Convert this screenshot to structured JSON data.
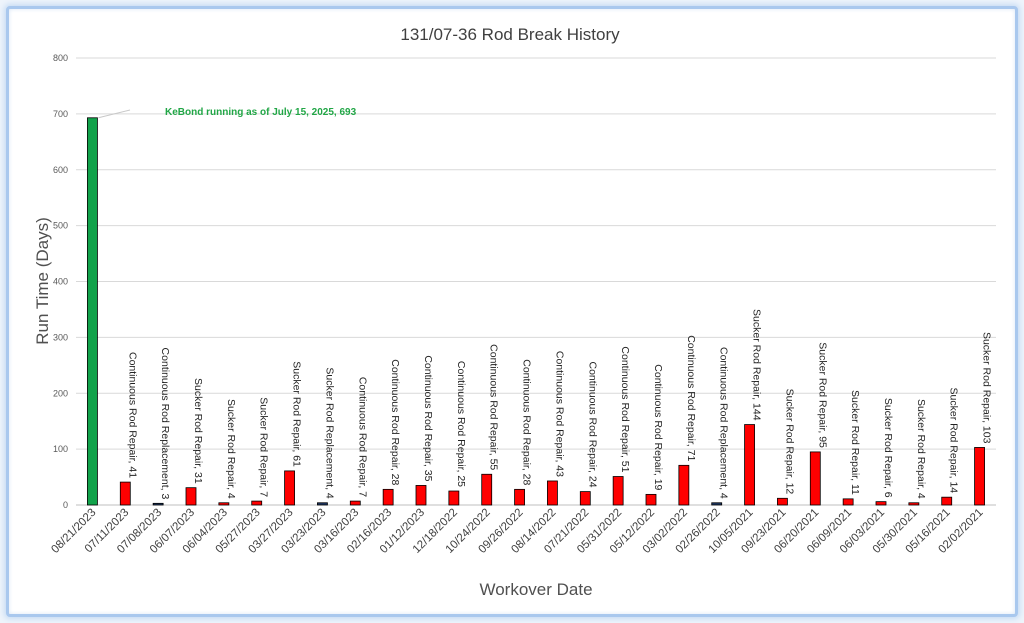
{
  "chart_data": {
    "type": "bar",
    "title": "131/07-36 Rod Break History",
    "xlabel": "Workover Date",
    "ylabel": "Run Time (Days)",
    "ylim": [
      0,
      800
    ],
    "yticks": [
      0,
      100,
      200,
      300,
      400,
      500,
      600,
      700,
      800
    ],
    "grid": true,
    "categories": [
      "08/21/2023",
      "07/11/2023",
      "07/08/2023",
      "06/07/2023",
      "06/04/2023",
      "05/27/2023",
      "03/27/2023",
      "03/23/2023",
      "03/16/2023",
      "02/16/2023",
      "01/12/2023",
      "12/18/2022",
      "10/24/2022",
      "09/26/2022",
      "08/14/2022",
      "07/21/2022",
      "05/31/2022",
      "05/12/2022",
      "03/02/2022",
      "02/26/2022",
      "10/05/2021",
      "09/23/2021",
      "06/20/2021",
      "06/09/2021",
      "06/03/2021",
      "05/30/2021",
      "05/16/2021",
      "02/02/2021"
    ],
    "values": [
      693,
      41,
      3,
      31,
      4,
      7,
      61,
      4,
      7,
      28,
      35,
      25,
      55,
      28,
      43,
      24,
      51,
      19,
      71,
      4,
      144,
      12,
      95,
      11,
      6,
      4,
      14,
      103
    ],
    "repair_types": [
      "",
      "Continuous Rod Repair",
      "Continuous Rod Replacement",
      "Sucker Rod Repair",
      "Sucker Rod Repair",
      "Sucker Rod Repair",
      "Sucker Rod Repair",
      "Sucker Rod Replacement",
      "Continuous Rod Repair",
      "Continuous Rod Repair",
      "Continuous Rod Repair",
      "Continuous Rod Repair",
      "Continuous Rod Repair",
      "Continuous Rod Repair",
      "Continuous Rod Repair",
      "Continuous Rod Repair",
      "Continuous Rod Repair",
      "Continuous Rod Repair",
      "Continuous Rod Repair",
      "Continuous Rod Replacement",
      "Sucker Rod Repair",
      "Sucker Rod Repair",
      "Sucker Rod Repair",
      "Sucker Rod Repair",
      "Sucker Rod Repair",
      "Sucker Rod Repair",
      "Sucker Rod Repair",
      "Sucker Rod Repair"
    ],
    "annotation": "KeBond running as of July 15, 2025, 693",
    "colors": {
      "kebond": "#11a24a",
      "repair": "#ff0000",
      "replacement": "#1f3864",
      "replacement_label": "#3a64b0",
      "annotation": "#21a646",
      "grid": "#d9d9d9"
    }
  }
}
